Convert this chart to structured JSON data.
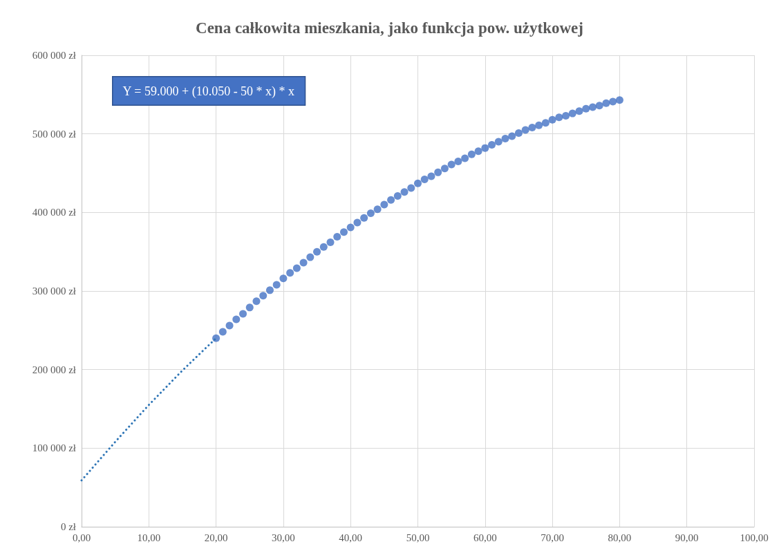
{
  "chart_data": {
    "type": "scatter",
    "title": "Cena całkowita mieszkania, jako funkcja pow. użytkowej",
    "annotations": [
      "Y = 59.000 + (10.050 - 50 * x) * x"
    ],
    "xlim": [
      0,
      100
    ],
    "xticks": [
      {
        "value": 0,
        "label": "0,00"
      },
      {
        "value": 10,
        "label": "10,00"
      },
      {
        "value": 20,
        "label": "20,00"
      },
      {
        "value": 30,
        "label": "30,00"
      },
      {
        "value": 40,
        "label": "40,00"
      },
      {
        "value": 50,
        "label": "50,00"
      },
      {
        "value": 60,
        "label": "60,00"
      },
      {
        "value": 70,
        "label": "70,00"
      },
      {
        "value": 80,
        "label": "80,00"
      },
      {
        "value": 90,
        "label": "90,00"
      },
      {
        "value": 100,
        "label": "100,00"
      }
    ],
    "ylim": [
      0,
      600000
    ],
    "yticks": [
      {
        "value": 0,
        "label": "0 zł"
      },
      {
        "value": 100000,
        "label": "100 000 zł"
      },
      {
        "value": 200000,
        "label": "200 000 zł"
      },
      {
        "value": 300000,
        "label": "300 000 zł"
      },
      {
        "value": 400000,
        "label": "400 000 zł"
      },
      {
        "value": 500000,
        "label": "500 000 zł"
      },
      {
        "value": 600000,
        "label": "600 000 zł"
      }
    ],
    "grid": true,
    "marker": "circle",
    "series": [
      {
        "type": "line",
        "color": "#2e75b6",
        "line_style": "dotted",
        "marker": "none",
        "x": [
          0,
          5,
          10,
          15,
          20
        ],
        "values": [
          59000,
          108000,
          155000,
          199000,
          240000
        ]
      },
      {
        "color": "#4472c4",
        "x": [
          20,
          21,
          22,
          23,
          24,
          25,
          26,
          27,
          28,
          29,
          30,
          31,
          32,
          33,
          34,
          35,
          36,
          37,
          38,
          39,
          40,
          41,
          42,
          43,
          44,
          45,
          46,
          47,
          48,
          49,
          50,
          51,
          52,
          53,
          54,
          55,
          56,
          57,
          58,
          59,
          60,
          61,
          62,
          63,
          64,
          65,
          66,
          67,
          68,
          69,
          70,
          71,
          72,
          73,
          74,
          75,
          76,
          77,
          78,
          79,
          80
        ],
        "values": [
          240000,
          248000,
          256000,
          264000,
          271000,
          279000,
          287000,
          294000,
          301000,
          308000,
          316000,
          323000,
          329000,
          336000,
          343000,
          350000,
          356000,
          362000,
          369000,
          375000,
          381000,
          387000,
          393000,
          399000,
          404000,
          410000,
          416000,
          421000,
          426000,
          431000,
          437000,
          442000,
          446000,
          451000,
          456000,
          461000,
          465000,
          469000,
          474000,
          478000,
          482000,
          486000,
          490000,
          494000,
          497000,
          501000,
          505000,
          508000,
          511000,
          514000,
          518000,
          521000,
          523000,
          526000,
          529000,
          532000,
          534000,
          536000,
          539000,
          541000,
          543000
        ]
      }
    ]
  }
}
